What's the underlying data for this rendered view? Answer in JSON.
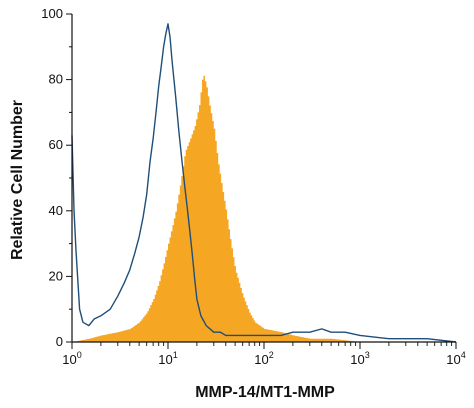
{
  "chart_data": {
    "type": "area",
    "title": "",
    "xlabel": "MMP-14/MT1-MMP",
    "ylabel": "Relative Cell Number",
    "x_scale": "log",
    "xlim": [
      1,
      10000
    ],
    "ylim": [
      0,
      100
    ],
    "x_ticks": [
      {
        "value": 1,
        "base": "10",
        "exp": "0"
      },
      {
        "value": 10,
        "base": "10",
        "exp": "1"
      },
      {
        "value": 100,
        "base": "10",
        "exp": "2"
      },
      {
        "value": 1000,
        "base": "10",
        "exp": "3"
      },
      {
        "value": 10000,
        "base": "10",
        "exp": "4"
      }
    ],
    "y_ticks": [
      "0",
      "20",
      "40",
      "60",
      "80",
      "100"
    ],
    "grid": false,
    "legend": "none",
    "series": [
      {
        "style": "filled",
        "color": "#F5A623",
        "x": [
          1.0,
          1.5,
          2.0,
          3.0,
          4.0,
          5.0,
          6.0,
          7.0,
          8.0,
          9.0,
          10.0,
          11.0,
          12.0,
          13.0,
          14.0,
          15.0,
          17.0,
          19.0,
          21.0,
          23.0,
          25.0,
          27.0,
          30.0,
          33.0,
          36.0,
          40.0,
          45.0,
          50.0,
          60.0,
          70.0,
          80.0,
          100.0,
          150.0,
          200.0,
          300.0,
          500.0,
          1000.0,
          2000.0,
          5000.0,
          10000.0
        ],
        "y": [
          0,
          1,
          2,
          3,
          4,
          6,
          9,
          13,
          18,
          24,
          30,
          35,
          40,
          46,
          52,
          58,
          62,
          66,
          72,
          82,
          78,
          72,
          65,
          55,
          48,
          40,
          30,
          22,
          14,
          9,
          6,
          4,
          3,
          2,
          1,
          1,
          0,
          0,
          0,
          0
        ]
      },
      {
        "style": "outline",
        "color": "#1F4E79",
        "x": [
          1.0,
          1.05,
          1.1,
          1.2,
          1.3,
          1.5,
          1.7,
          2.0,
          2.5,
          3.0,
          3.5,
          4.0,
          4.5,
          5.0,
          5.5,
          6.0,
          6.5,
          7.0,
          7.5,
          8.0,
          8.5,
          9.0,
          9.5,
          10.0,
          10.5,
          11.0,
          12.0,
          13.0,
          14.0,
          15.0,
          16.0,
          17.0,
          18.0,
          19.0,
          20.0,
          22.0,
          25.0,
          30.0,
          35.0,
          40.0,
          50.0,
          60.0,
          80.0,
          100.0,
          150.0,
          200.0,
          300.0,
          400.0,
          500.0,
          700.0,
          1000.0,
          2000.0,
          3000.0,
          5000.0,
          10000.0
        ],
        "y": [
          63,
          40,
          28,
          10,
          6,
          5,
          7,
          8,
          10,
          14,
          18,
          22,
          27,
          32,
          38,
          45,
          55,
          62,
          70,
          78,
          84,
          90,
          94,
          97,
          93,
          86,
          75,
          64,
          55,
          47,
          40,
          33,
          26,
          19,
          13,
          8,
          5,
          3,
          3,
          2,
          2,
          2,
          2,
          2,
          2,
          3,
          3,
          4,
          3,
          3,
          2,
          1,
          1,
          1,
          0
        ]
      }
    ]
  }
}
